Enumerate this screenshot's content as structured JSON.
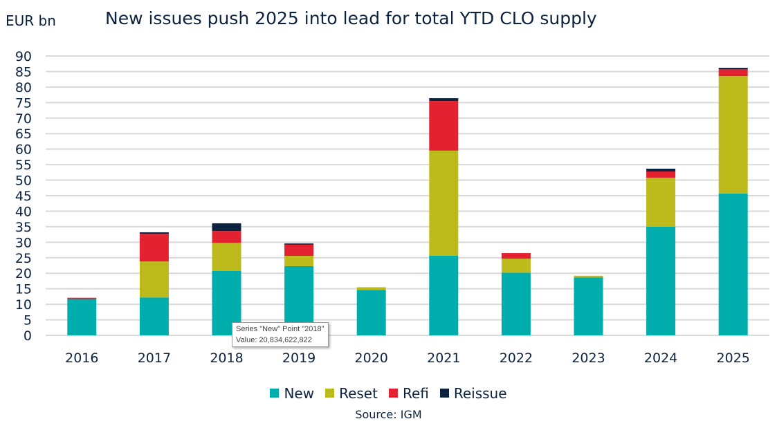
{
  "chart_data": {
    "type": "bar",
    "stacked": true,
    "title": "New issues push 2025 into lead for total YTD CLO supply",
    "ylabel": "EUR bn",
    "ylim": [
      0,
      90
    ],
    "yticks": [
      0,
      5,
      10,
      15,
      20,
      25,
      30,
      35,
      40,
      45,
      50,
      55,
      60,
      65,
      70,
      75,
      80,
      85,
      90
    ],
    "grid": true,
    "legend_position": "bottom",
    "categories": [
      "2016",
      "2017",
      "2018",
      "2019",
      "2020",
      "2021",
      "2022",
      "2023",
      "2024",
      "2025"
    ],
    "series": [
      {
        "name": "New",
        "color": "#00ADAD",
        "values": [
          11.7,
          12.2,
          20.8,
          22.3,
          14.6,
          25.7,
          20.2,
          18.6,
          35.0,
          45.7
        ]
      },
      {
        "name": "Reset",
        "color": "#BDBB1B",
        "values": [
          0,
          11.6,
          9.0,
          3.3,
          0.9,
          33.8,
          4.5,
          0.6,
          15.8,
          37.8
        ]
      },
      {
        "name": "Refi",
        "color": "#E32131",
        "values": [
          0.4,
          8.9,
          3.8,
          3.6,
          0,
          16.0,
          1.8,
          0,
          2.0,
          2.2
        ]
      },
      {
        "name": "Reissue",
        "color": "#0C2340",
        "values": [
          0,
          0.5,
          2.5,
          0.4,
          0,
          0.9,
          0,
          0,
          0.9,
          0.5
        ]
      }
    ],
    "source": "Source: IGM"
  },
  "tooltip": {
    "line1": "Series \"New\" Point \"2018\"",
    "line2": "Value: 20,834,622,822"
  }
}
